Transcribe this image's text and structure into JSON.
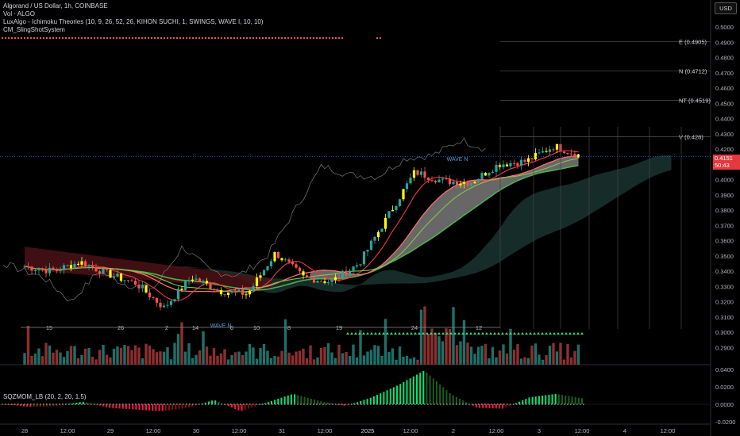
{
  "header": {
    "symbol_line": "Algorand / US Dollar, 1h, COINBASE",
    "vol_line": "Vol · ALGO",
    "ichimoku_line": "LuxAlgo - Ichimoku Theories (10, 9, 26, 52, 26, KIHON SUCHI, 1, SWINGS, WAVE I, 10, 10)",
    "sling_line": "CM_SlingShotSystem",
    "currency_button": "USD"
  },
  "price_tag": {
    "price": "0.4151",
    "countdown": "50:43"
  },
  "colors": {
    "up": "#26a69a",
    "down": "#ef5350",
    "tenkan": "#f23645",
    "kijun": "#4caf50",
    "cloud": "#2a2a2a",
    "highlight": "#ffff00",
    "price_line": "#3179f5"
  },
  "chart_data": [
    {
      "type": "candlestick",
      "title": "",
      "ylim": [
        0.2875,
        0.5075
      ],
      "yaxis_ticks": [
        "0.5000",
        "0.4900",
        "0.4800",
        "0.4700",
        "0.4600",
        "0.4500",
        "0.4400",
        "0.4300",
        "0.4200",
        "0.4100",
        "0.4000",
        "0.3900",
        "0.3800",
        "0.3700",
        "0.3600",
        "0.3500",
        "0.3400",
        "0.3300",
        "0.3200",
        "0.3100",
        "0.3000",
        "0.2900"
      ],
      "xaxis_ticks": [
        "28",
        "12:00",
        "29",
        "12:00",
        "30",
        "12:00",
        "31",
        "12:00",
        "2025",
        "12:00",
        "2",
        "12:00",
        "3",
        "12:00",
        "4",
        "12:00"
      ],
      "level_labels": [
        {
          "label": "E (0.4905)",
          "value": 0.4905
        },
        {
          "label": "N (0.4712)",
          "value": 0.4712
        },
        {
          "label": "NT (0.4519)",
          "value": 0.4519
        },
        {
          "label": "V (0.428)",
          "value": 0.428
        }
      ],
      "wave_labels": [
        "WAVE N",
        "WAVE N"
      ],
      "kihon_suchi_labels": [
        "15",
        "26",
        "2",
        "14",
        "6",
        "10",
        "8",
        "19",
        "24",
        "12"
      ],
      "candles_approx": [
        {
          "t": "Dec 27 18:00",
          "c": 0.343
        },
        {
          "t": "Dec 28 06:00",
          "c": 0.34
        },
        {
          "t": "Dec 28 18:00",
          "c": 0.346
        },
        {
          "t": "Dec 29 06:00",
          "c": 0.338
        },
        {
          "t": "Dec 29 18:00",
          "c": 0.332
        },
        {
          "t": "Dec 30 06:00",
          "c": 0.316
        },
        {
          "t": "Dec 30 12:00",
          "c": 0.336
        },
        {
          "t": "Dec 30 20:00",
          "c": 0.327
        },
        {
          "t": "Dec 31 06:00",
          "c": 0.325
        },
        {
          "t": "Dec 31 12:00",
          "c": 0.352
        },
        {
          "t": "Dec 31 20:00",
          "c": 0.336
        },
        {
          "t": "Jan 1 06:00",
          "c": 0.333
        },
        {
          "t": "Jan 1 12:00",
          "c": 0.345
        },
        {
          "t": "Jan 1 18:00",
          "c": 0.375
        },
        {
          "t": "Jan 2 00:00",
          "c": 0.405
        },
        {
          "t": "Jan 2 06:00",
          "c": 0.399
        },
        {
          "t": "Jan 2 12:00",
          "c": 0.398
        },
        {
          "t": "Jan 2 18:00",
          "c": 0.41
        },
        {
          "t": "Jan 3 00:00",
          "c": 0.412
        },
        {
          "t": "Jan 3 06:00",
          "c": 0.422
        },
        {
          "t": "Jan 3 12:00",
          "c": 0.4151
        }
      ],
      "last_price": 0.4151
    },
    {
      "type": "bar",
      "title": "SQZMOM_LB (20, 2, 20, 1.5)",
      "ylim": [
        -0.0125,
        0.0425
      ],
      "yaxis_ticks": [
        "0.0400",
        "0.0200",
        "0.0000",
        "-0.0200"
      ],
      "values_approx": [
        0.0,
        -0.003,
        -0.002,
        0.003,
        -0.004,
        -0.006,
        -0.008,
        -0.004,
        0.005,
        -0.008,
        0.002,
        0.012,
        0.004,
        -0.002,
        0.008,
        0.022,
        0.039,
        0.012,
        -0.004,
        -0.005,
        0.008,
        0.012,
        0.007
      ]
    }
  ]
}
